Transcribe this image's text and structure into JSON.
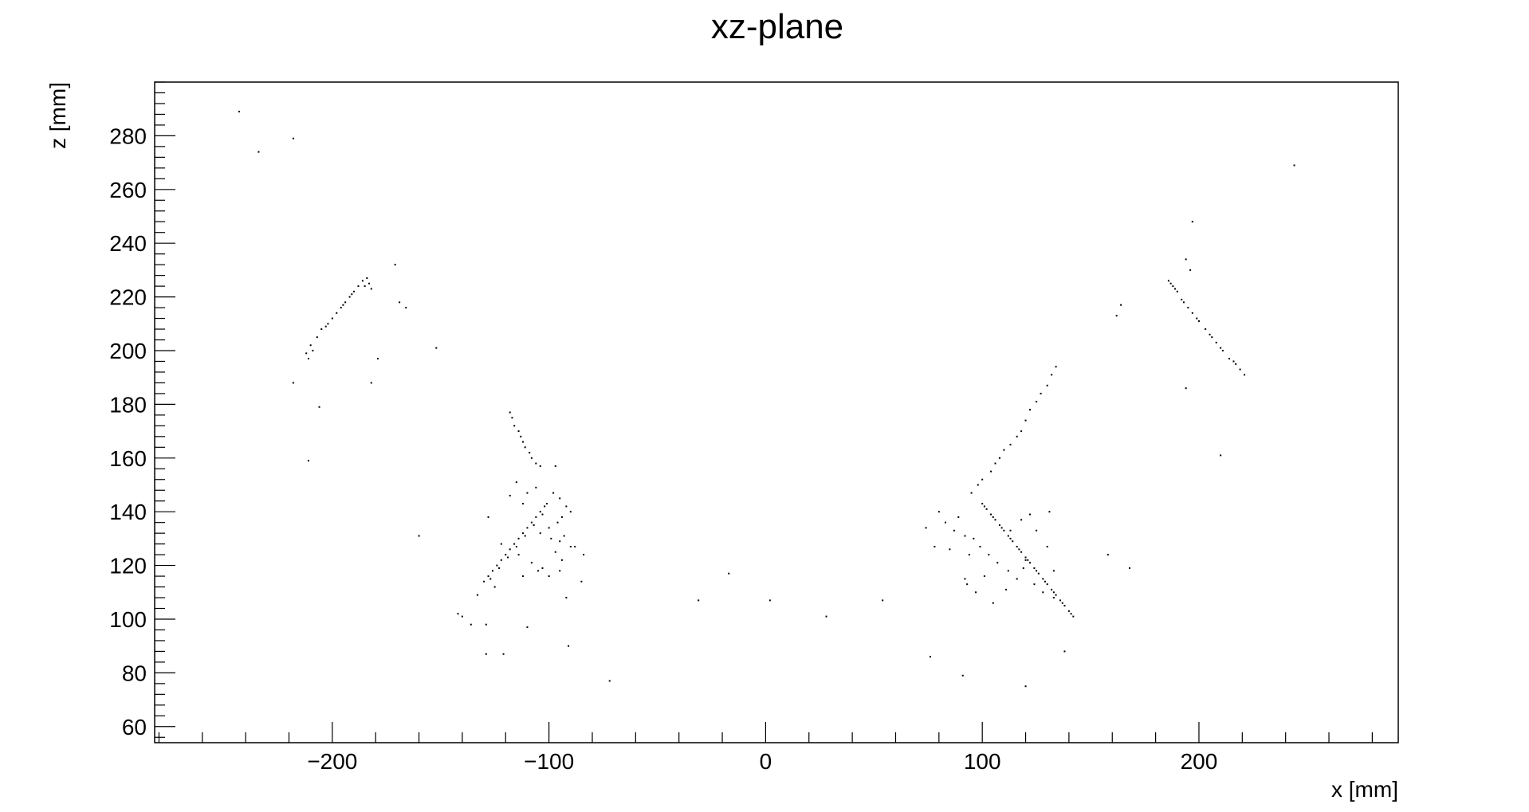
{
  "chart_data": {
    "type": "scatter",
    "title": "xz-plane",
    "xlabel": "x [mm]",
    "ylabel": "z [mm]",
    "xlim": [
      -282,
      292
    ],
    "ylim": [
      54,
      300
    ],
    "x_ticks": [
      -200,
      -100,
      0,
      100,
      200
    ],
    "y_ticks": [
      60,
      80,
      100,
      120,
      140,
      160,
      180,
      200,
      220,
      240,
      260,
      280
    ],
    "x_tick_labels": [
      "−200",
      "−100",
      "0",
      "100",
      "200"
    ],
    "y_tick_labels": [
      "60",
      "80",
      "100",
      "120",
      "140",
      "160",
      "180",
      "200",
      "220",
      "240",
      "260",
      "280"
    ],
    "grid": false,
    "marker_color": "#000000",
    "points": [
      [
        -234,
        274
      ],
      [
        -218,
        279
      ],
      [
        -243,
        289
      ],
      [
        -212,
        199
      ],
      [
        -210,
        202
      ],
      [
        -207,
        205
      ],
      [
        -205,
        208
      ],
      [
        -202,
        210
      ],
      [
        -200,
        212
      ],
      [
        -198,
        214
      ],
      [
        -196,
        216
      ],
      [
        -194,
        218
      ],
      [
        -192,
        220
      ],
      [
        -190,
        222
      ],
      [
        -188,
        224
      ],
      [
        -186,
        226
      ],
      [
        -184,
        227
      ],
      [
        -211,
        197
      ],
      [
        -209,
        200
      ],
      [
        -203,
        209
      ],
      [
        -195,
        217
      ],
      [
        -191,
        221
      ],
      [
        -185,
        224
      ],
      [
        -183,
        225
      ],
      [
        -182,
        223
      ],
      [
        -218,
        188
      ],
      [
        -206,
        179
      ],
      [
        -211,
        159
      ],
      [
        -179,
        197
      ],
      [
        -182,
        188
      ],
      [
        -171,
        232
      ],
      [
        -169,
        218
      ],
      [
        -166,
        216
      ],
      [
        -152,
        201
      ],
      [
        -160,
        131
      ],
      [
        -130,
        114
      ],
      [
        -128,
        116
      ],
      [
        -126,
        118
      ],
      [
        -124,
        120
      ],
      [
        -122,
        122
      ],
      [
        -120,
        124
      ],
      [
        -118,
        126
      ],
      [
        -116,
        128
      ],
      [
        -114,
        130
      ],
      [
        -112,
        132
      ],
      [
        -110,
        134
      ],
      [
        -108,
        136
      ],
      [
        -106,
        138
      ],
      [
        -104,
        140
      ],
      [
        -102,
        142
      ],
      [
        -101,
        143
      ],
      [
        -127,
        115
      ],
      [
        -123,
        119
      ],
      [
        -119,
        123
      ],
      [
        -115,
        127
      ],
      [
        -111,
        131
      ],
      [
        -107,
        135
      ],
      [
        -103,
        139
      ],
      [
        -118,
        177
      ],
      [
        -117,
        175
      ],
      [
        -116,
        172
      ],
      [
        -114,
        170
      ],
      [
        -113,
        168
      ],
      [
        -112,
        166
      ],
      [
        -111,
        164
      ],
      [
        -109,
        162
      ],
      [
        -108,
        160
      ],
      [
        -106,
        158
      ],
      [
        -104,
        157
      ],
      [
        -97,
        157
      ],
      [
        -115,
        151
      ],
      [
        -118,
        146
      ],
      [
        -112,
        143
      ],
      [
        -110,
        147
      ],
      [
        -106,
        149
      ],
      [
        -98,
        147
      ],
      [
        -95,
        145
      ],
      [
        -92,
        142
      ],
      [
        -90,
        140
      ],
      [
        -94,
        138
      ],
      [
        -96,
        136
      ],
      [
        -100,
        134
      ],
      [
        -104,
        132
      ],
      [
        -99,
        130
      ],
      [
        -95,
        129
      ],
      [
        -93,
        131
      ],
      [
        -97,
        125
      ],
      [
        -94,
        122
      ],
      [
        -90,
        127
      ],
      [
        -128,
        138
      ],
      [
        -122,
        128
      ],
      [
        -114,
        124
      ],
      [
        -108,
        121
      ],
      [
        -105,
        118
      ],
      [
        -112,
        116
      ],
      [
        -103,
        119
      ],
      [
        -100,
        116
      ],
      [
        -95,
        118
      ],
      [
        -88,
        127
      ],
      [
        -84,
        124
      ],
      [
        -85,
        114
      ],
      [
        -92,
        108
      ],
      [
        -125,
        112
      ],
      [
        -133,
        109
      ],
      [
        -140,
        101
      ],
      [
        -142,
        102
      ],
      [
        -136,
        98
      ],
      [
        -129,
        98
      ],
      [
        -110,
        97
      ],
      [
        -129,
        87
      ],
      [
        -121,
        87
      ],
      [
        -91,
        90
      ],
      [
        -72,
        77
      ],
      [
        -31,
        107
      ],
      [
        -17,
        117
      ],
      [
        2,
        107
      ],
      [
        28,
        101
      ],
      [
        54,
        107
      ],
      [
        100,
        143
      ],
      [
        102,
        141
      ],
      [
        104,
        139
      ],
      [
        106,
        137
      ],
      [
        108,
        135
      ],
      [
        110,
        133
      ],
      [
        112,
        131
      ],
      [
        114,
        129
      ],
      [
        116,
        127
      ],
      [
        118,
        125
      ],
      [
        120,
        123
      ],
      [
        122,
        121
      ],
      [
        124,
        119
      ],
      [
        126,
        117
      ],
      [
        128,
        115
      ],
      [
        130,
        113
      ],
      [
        132,
        111
      ],
      [
        134,
        109
      ],
      [
        136,
        107
      ],
      [
        138,
        105
      ],
      [
        140,
        103
      ],
      [
        142,
        101
      ],
      [
        101,
        142
      ],
      [
        105,
        138
      ],
      [
        109,
        134
      ],
      [
        113,
        130
      ],
      [
        117,
        126
      ],
      [
        121,
        122
      ],
      [
        125,
        118
      ],
      [
        129,
        114
      ],
      [
        133,
        110
      ],
      [
        137,
        106
      ],
      [
        141,
        102
      ],
      [
        95,
        147
      ],
      [
        98,
        150
      ],
      [
        100,
        152
      ],
      [
        104,
        155
      ],
      [
        106,
        158
      ],
      [
        108,
        160
      ],
      [
        110,
        163
      ],
      [
        113,
        165
      ],
      [
        116,
        168
      ],
      [
        118,
        170
      ],
      [
        120,
        174
      ],
      [
        122,
        178
      ],
      [
        125,
        181
      ],
      [
        127,
        184
      ],
      [
        130,
        187
      ],
      [
        132,
        191
      ],
      [
        134,
        194
      ],
      [
        74,
        134
      ],
      [
        80,
        140
      ],
      [
        83,
        136
      ],
      [
        87,
        133
      ],
      [
        89,
        138
      ],
      [
        92,
        131
      ],
      [
        96,
        130
      ],
      [
        99,
        127
      ],
      [
        85,
        126
      ],
      [
        78,
        127
      ],
      [
        94,
        124
      ],
      [
        103,
        124
      ],
      [
        107,
        121
      ],
      [
        112,
        118
      ],
      [
        116,
        115
      ],
      [
        120,
        122
      ],
      [
        124,
        113
      ],
      [
        128,
        110
      ],
      [
        133,
        108
      ],
      [
        92,
        115
      ],
      [
        93,
        113
      ],
      [
        97,
        110
      ],
      [
        101,
        116
      ],
      [
        105,
        106
      ],
      [
        111,
        111
      ],
      [
        119,
        119
      ],
      [
        125,
        133
      ],
      [
        130,
        127
      ],
      [
        133,
        118
      ],
      [
        131,
        140
      ],
      [
        122,
        139
      ],
      [
        118,
        137
      ],
      [
        113,
        133
      ],
      [
        76,
        86
      ],
      [
        91,
        79
      ],
      [
        120,
        75
      ],
      [
        138,
        88
      ],
      [
        158,
        124
      ],
      [
        168,
        119
      ],
      [
        162,
        213
      ],
      [
        164,
        217
      ],
      [
        186,
        226
      ],
      [
        188,
        224
      ],
      [
        190,
        222
      ],
      [
        192,
        219
      ],
      [
        195,
        216
      ],
      [
        197,
        214
      ],
      [
        200,
        211
      ],
      [
        203,
        208
      ],
      [
        206,
        205
      ],
      [
        208,
        203
      ],
      [
        211,
        200
      ],
      [
        214,
        197
      ],
      [
        217,
        195
      ],
      [
        219,
        193
      ],
      [
        221,
        191
      ],
      [
        187,
        225
      ],
      [
        189,
        223
      ],
      [
        193,
        218
      ],
      [
        199,
        212
      ],
      [
        205,
        206
      ],
      [
        210,
        201
      ],
      [
        216,
        196
      ],
      [
        194,
        234
      ],
      [
        196,
        230
      ],
      [
        197,
        248
      ],
      [
        194,
        186
      ],
      [
        210,
        161
      ],
      [
        244,
        269
      ]
    ]
  }
}
